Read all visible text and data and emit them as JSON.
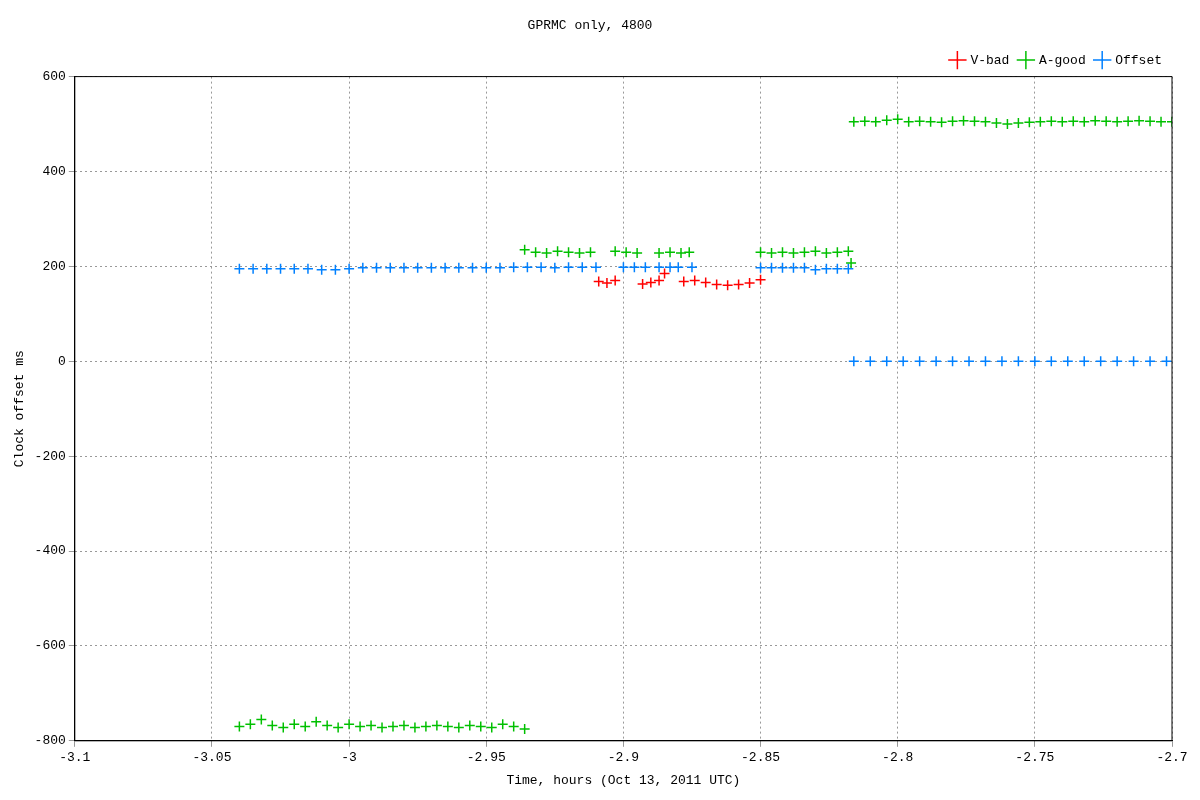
{
  "chart_data": {
    "type": "scatter",
    "title": "GPRMC only, 4800",
    "xlabel": "Time, hours (Oct 13, 2011 UTC)",
    "ylabel": "Clock offset ms",
    "xlim": [
      -3.1,
      -2.7
    ],
    "xticks": [
      -3.1,
      -3.05,
      -3,
      -2.95,
      -2.9,
      -2.85,
      -2.8,
      -2.75,
      -2.7
    ],
    "ylim": [
      -800,
      600
    ],
    "yticks": [
      -800,
      -600,
      -400,
      -200,
      0,
      200,
      400,
      600
    ],
    "grid": true,
    "legend": "top right",
    "marker": "cross",
    "series": [
      {
        "name": "V-bad",
        "color": "#ff0000",
        "x": [
          -2.909,
          -2.906,
          -2.903,
          -2.893,
          -2.89,
          -2.887,
          -2.885,
          -2.878,
          -2.874,
          -2.87,
          -2.866,
          -2.862,
          -2.858,
          -2.854,
          -2.85
        ],
        "values": [
          168,
          165,
          170,
          163,
          166,
          170,
          185,
          168,
          170,
          166,
          162,
          160,
          162,
          165,
          172
        ]
      },
      {
        "name": "A-good",
        "color": "#00c000",
        "x": [
          -3.04,
          -3.036,
          -3.032,
          -3.028,
          -3.024,
          -3.02,
          -3.016,
          -3.012,
          -3.008,
          -3.004,
          -3,
          -2.996,
          -2.992,
          -2.988,
          -2.984,
          -2.98,
          -2.976,
          -2.972,
          -2.968,
          -2.964,
          -2.96,
          -2.956,
          -2.952,
          -2.948,
          -2.944,
          -2.94,
          -2.936,
          -2.936,
          -2.932,
          -2.928,
          -2.924,
          -2.92,
          -2.916,
          -2.912,
          -2.903,
          -2.899,
          -2.895,
          -2.887,
          -2.883,
          -2.879,
          -2.876,
          -2.85,
          -2.846,
          -2.842,
          -2.838,
          -2.834,
          -2.83,
          -2.826,
          -2.822,
          -2.818,
          -2.817,
          -2.816,
          -2.812,
          -2.808,
          -2.804,
          -2.8,
          -2.796,
          -2.792,
          -2.788,
          -2.784,
          -2.78,
          -2.776,
          -2.772,
          -2.768,
          -2.764,
          -2.76,
          -2.756,
          -2.752,
          -2.748,
          -2.744,
          -2.74,
          -2.736,
          -2.732,
          -2.728,
          -2.724,
          -2.72,
          -2.716,
          -2.712,
          -2.708,
          -2.704,
          -2.7
        ],
        "values": [
          -770,
          -765,
          -755,
          -768,
          -772,
          -765,
          -770,
          -760,
          -768,
          -772,
          -765,
          -770,
          -768,
          -772,
          -770,
          -768,
          -772,
          -770,
          -768,
          -770,
          -772,
          -768,
          -770,
          -772,
          -765,
          -770,
          -775,
          235,
          230,
          228,
          232,
          230,
          228,
          230,
          232,
          230,
          228,
          228,
          230,
          228,
          230,
          230,
          228,
          230,
          228,
          230,
          232,
          228,
          230,
          232,
          207,
          505,
          506,
          505,
          508,
          510,
          505,
          506,
          505,
          504,
          506,
          507,
          506,
          505,
          502,
          500,
          502,
          504,
          505,
          506,
          505,
          506,
          505,
          507,
          506,
          505,
          506,
          507,
          506,
          505,
          505
        ]
      },
      {
        "name": "Offset",
        "color": "#0080ff",
        "x": [
          -3.04,
          -3.035,
          -3.03,
          -3.025,
          -3.02,
          -3.015,
          -3.01,
          -3.005,
          -3,
          -2.995,
          -2.99,
          -2.985,
          -2.98,
          -2.975,
          -2.97,
          -2.965,
          -2.96,
          -2.955,
          -2.95,
          -2.945,
          -2.94,
          -2.935,
          -2.93,
          -2.925,
          -2.92,
          -2.915,
          -2.91,
          -2.9,
          -2.896,
          -2.892,
          -2.887,
          -2.883,
          -2.88,
          -2.875,
          -2.85,
          -2.846,
          -2.842,
          -2.838,
          -2.834,
          -2.83,
          -2.826,
          -2.822,
          -2.818,
          -2.816,
          -2.81,
          -2.804,
          -2.798,
          -2.792,
          -2.786,
          -2.78,
          -2.774,
          -2.768,
          -2.762,
          -2.756,
          -2.75,
          -2.744,
          -2.738,
          -2.732,
          -2.726,
          -2.72,
          -2.714,
          -2.708,
          -2.702
        ],
        "values": [
          195,
          195,
          195,
          195,
          195,
          195,
          193,
          193,
          195,
          197,
          197,
          197,
          197,
          197,
          197,
          197,
          197,
          197,
          197,
          197,
          198,
          198,
          198,
          197,
          198,
          198,
          198,
          198,
          198,
          198,
          198,
          198,
          198,
          198,
          197,
          197,
          197,
          197,
          197,
          193,
          195,
          195,
          195,
          0,
          0,
          0,
          0,
          0,
          0,
          0,
          0,
          0,
          0,
          0,
          0,
          0,
          0,
          0,
          0,
          0,
          0,
          0,
          0
        ]
      }
    ]
  }
}
